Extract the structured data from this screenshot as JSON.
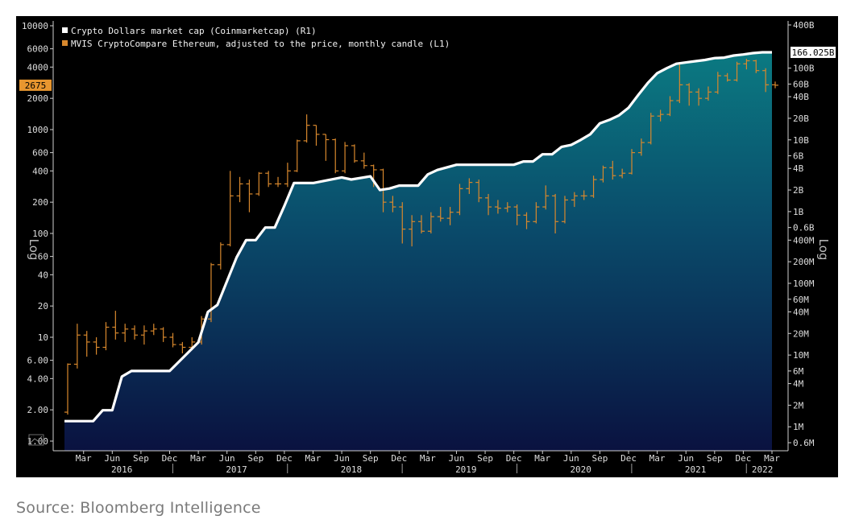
{
  "source": "Source: Bloomberg Intelligence",
  "chart_data": {
    "type": "line",
    "title": "",
    "left_axis": {
      "label": "Log",
      "scale": "log",
      "range": [
        1,
        10000
      ],
      "ticks": [
        {
          "v": 10000,
          "t": "10000"
        },
        {
          "v": 6000,
          "t": "6000"
        },
        {
          "v": 4000,
          "t": "4000"
        },
        {
          "v": 2000,
          "t": "2000"
        },
        {
          "v": 1000,
          "t": "1000"
        },
        {
          "v": 600,
          "t": "600"
        },
        {
          "v": 400,
          "t": "400"
        },
        {
          "v": 200,
          "t": "200"
        },
        {
          "v": 100,
          "t": "100"
        },
        {
          "v": 60,
          "t": "60"
        },
        {
          "v": 40,
          "t": "40"
        },
        {
          "v": 20,
          "t": "20"
        },
        {
          "v": 10,
          "t": "10"
        },
        {
          "v": 6,
          "t": "6.00"
        },
        {
          "v": 4,
          "t": "4.00"
        },
        {
          "v": 2,
          "t": "2.00"
        },
        {
          "v": 1,
          "t": "1.00"
        }
      ]
    },
    "right_axis": {
      "label": "Log",
      "scale": "log",
      "range": [
        500000,
        400000000000
      ],
      "ticks": [
        {
          "v": 400000000000,
          "t": "400B"
        },
        {
          "v": 100000000000,
          "t": "100B"
        },
        {
          "v": 60000000000,
          "t": "60B"
        },
        {
          "v": 40000000000,
          "t": "40B"
        },
        {
          "v": 20000000000,
          "t": "20B"
        },
        {
          "v": 10000000000,
          "t": "10B"
        },
        {
          "v": 6000000000,
          "t": "6B"
        },
        {
          "v": 4000000000,
          "t": "4B"
        },
        {
          "v": 2000000000,
          "t": "2B"
        },
        {
          "v": 1000000000,
          "t": "1B"
        },
        {
          "v": 600000000,
          "t": "0.6B"
        },
        {
          "v": 400000000,
          "t": "400M"
        },
        {
          "v": 200000000,
          "t": "200M"
        },
        {
          "v": 100000000,
          "t": "100M"
        },
        {
          "v": 60000000,
          "t": "60M"
        },
        {
          "v": 40000000,
          "t": "40M"
        },
        {
          "v": 20000000,
          "t": "20M"
        },
        {
          "v": 10000000,
          "t": "10M"
        },
        {
          "v": 6000000,
          "t": "6M"
        },
        {
          "v": 4000000,
          "t": "4M"
        },
        {
          "v": 2000000,
          "t": "2M"
        },
        {
          "v": 1000000,
          "t": "1M"
        },
        {
          "v": 600000,
          "t": "0.6M"
        }
      ]
    },
    "x_axis": {
      "range": [
        "2016-01",
        "2022-03"
      ],
      "month_ticks": [
        {
          "d": "2016-03",
          "t": "Mar"
        },
        {
          "d": "2016-06",
          "t": "Jun"
        },
        {
          "d": "2016-09",
          "t": "Sep"
        },
        {
          "d": "2016-12",
          "t": "Dec"
        },
        {
          "d": "2017-03",
          "t": "Mar"
        },
        {
          "d": "2017-06",
          "t": "Jun"
        },
        {
          "d": "2017-09",
          "t": "Sep"
        },
        {
          "d": "2017-12",
          "t": "Dec"
        },
        {
          "d": "2018-03",
          "t": "Mar"
        },
        {
          "d": "2018-06",
          "t": "Jun"
        },
        {
          "d": "2018-09",
          "t": "Sep"
        },
        {
          "d": "2018-12",
          "t": "Dec"
        },
        {
          "d": "2019-03",
          "t": "Mar"
        },
        {
          "d": "2019-06",
          "t": "Jun"
        },
        {
          "d": "2019-09",
          "t": "Sep"
        },
        {
          "d": "2019-12",
          "t": "Dec"
        },
        {
          "d": "2020-03",
          "t": "Mar"
        },
        {
          "d": "2020-06",
          "t": "Jun"
        },
        {
          "d": "2020-09",
          "t": "Sep"
        },
        {
          "d": "2020-12",
          "t": "Dec"
        },
        {
          "d": "2021-03",
          "t": "Mar"
        },
        {
          "d": "2021-06",
          "t": "Jun"
        },
        {
          "d": "2021-09",
          "t": "Sep"
        },
        {
          "d": "2021-12",
          "t": "Dec"
        },
        {
          "d": "2022-03",
          "t": "Mar"
        }
      ],
      "year_labels": [
        {
          "d": "2016-07",
          "t": "2016"
        },
        {
          "d": "2017-07",
          "t": "2017"
        },
        {
          "d": "2018-07",
          "t": "2018"
        },
        {
          "d": "2019-07",
          "t": "2019"
        },
        {
          "d": "2020-07",
          "t": "2020"
        },
        {
          "d": "2021-07",
          "t": "2021"
        },
        {
          "d": "2022-02",
          "t": "2022"
        }
      ]
    },
    "legend_position": "top-left",
    "series": [
      {
        "name": "Crypto Dollars market cap (Coinmarketcap) (R1)",
        "axis": "right",
        "style": "area",
        "color": "#ffffff",
        "last_value_label": "166.025B",
        "points": [
          [
            "2016-01",
            1200000
          ],
          [
            "2016-04",
            1200000
          ],
          [
            "2016-05",
            1700000
          ],
          [
            "2016-06",
            1700000
          ],
          [
            "2016-07",
            5000000
          ],
          [
            "2016-08",
            6000000
          ],
          [
            "2016-12",
            6000000
          ],
          [
            "2017-03",
            15000000
          ],
          [
            "2017-04",
            40000000
          ],
          [
            "2017-05",
            50000000
          ],
          [
            "2017-07",
            230000000
          ],
          [
            "2017-08",
            400000000
          ],
          [
            "2017-09",
            400000000
          ],
          [
            "2017-10",
            600000000
          ],
          [
            "2017-11",
            600000000
          ],
          [
            "2017-12",
            1200000000
          ],
          [
            "2018-01",
            2500000000
          ],
          [
            "2018-03",
            2500000000
          ],
          [
            "2018-06",
            3000000000
          ],
          [
            "2018-07",
            2800000000
          ],
          [
            "2018-09",
            3100000000
          ],
          [
            "2018-10",
            2000000000
          ],
          [
            "2018-11",
            2100000000
          ],
          [
            "2018-12",
            2300000000
          ],
          [
            "2019-02",
            2300000000
          ],
          [
            "2019-03",
            3300000000
          ],
          [
            "2019-04",
            3800000000
          ],
          [
            "2019-06",
            4500000000
          ],
          [
            "2019-09",
            4500000000
          ],
          [
            "2019-10",
            4500000000
          ],
          [
            "2019-12",
            4500000000
          ],
          [
            "2020-01",
            5000000000
          ],
          [
            "2020-02",
            5000000000
          ],
          [
            "2020-03",
            6300000000
          ],
          [
            "2020-04",
            6300000000
          ],
          [
            "2020-05",
            8000000000
          ],
          [
            "2020-06",
            8500000000
          ],
          [
            "2020-07",
            10000000000
          ],
          [
            "2020-08",
            12000000000
          ],
          [
            "2020-09",
            17000000000
          ],
          [
            "2020-10",
            19000000000
          ],
          [
            "2020-11",
            22000000000
          ],
          [
            "2020-12",
            28000000000
          ],
          [
            "2021-01",
            42000000000
          ],
          [
            "2021-02",
            62000000000
          ],
          [
            "2021-03",
            85000000000
          ],
          [
            "2021-04",
            100000000000
          ],
          [
            "2021-05",
            115000000000
          ],
          [
            "2021-06",
            120000000000
          ],
          [
            "2021-07",
            125000000000
          ],
          [
            "2021-08",
            130000000000
          ],
          [
            "2021-09",
            138000000000
          ],
          [
            "2021-10",
            140000000000
          ],
          [
            "2021-11",
            150000000000
          ],
          [
            "2021-12",
            155000000000
          ],
          [
            "2022-01",
            162000000000
          ],
          [
            "2022-02",
            166025000000
          ],
          [
            "2022-03",
            166025000000
          ]
        ]
      },
      {
        "name": "MVIS CryptoCompare Ethereum, adjusted to the price, monthly candle (L1)",
        "axis": "left",
        "style": "candle",
        "color": "#d8882d",
        "last_value_label": "2675",
        "candles": [
          [
            "2016-01",
            1.9,
            5.5,
            5.6,
            1.8
          ],
          [
            "2016-02",
            5.5,
            10.5,
            13.5,
            5.0
          ],
          [
            "2016-03",
            10.5,
            9.0,
            11.5,
            6.5
          ],
          [
            "2016-04",
            9.0,
            8.0,
            10.0,
            6.8
          ],
          [
            "2016-05",
            8.0,
            12.5,
            14.0,
            7.5
          ],
          [
            "2016-06",
            12.5,
            11.0,
            18.0,
            9.5
          ],
          [
            "2016-07",
            11.0,
            12.0,
            13.5,
            9.0
          ],
          [
            "2016-08",
            12.0,
            10.5,
            13.0,
            9.5
          ],
          [
            "2016-09",
            10.5,
            11.5,
            13.0,
            8.5
          ],
          [
            "2016-10",
            11.5,
            12.0,
            13.5,
            10.5
          ],
          [
            "2016-11",
            12.0,
            10.0,
            12.5,
            9.0
          ],
          [
            "2016-12",
            10.0,
            8.5,
            11.0,
            8.0
          ],
          [
            "2017-01",
            8.5,
            8.0,
            9.0,
            7.0
          ],
          [
            "2017-02",
            8.0,
            9.0,
            10.0,
            7.5
          ],
          [
            "2017-03",
            9.0,
            15.0,
            16.0,
            8.5
          ],
          [
            "2017-04",
            15.0,
            50.0,
            52.0,
            14.0
          ],
          [
            "2017-05",
            50.0,
            78.0,
            82.0,
            45.0
          ],
          [
            "2017-06",
            78.0,
            230.0,
            400.0,
            75.0
          ],
          [
            "2017-07",
            230.0,
            300.0,
            350.0,
            200.0
          ],
          [
            "2017-08",
            300.0,
            240.0,
            330.0,
            160.0
          ],
          [
            "2017-09",
            240.0,
            380.0,
            390.0,
            230.0
          ],
          [
            "2017-10",
            380.0,
            300.0,
            400.0,
            280.0
          ],
          [
            "2017-11",
            300.0,
            300.0,
            350.0,
            280.0
          ],
          [
            "2017-12",
            300.0,
            400.0,
            480.0,
            280.0
          ],
          [
            "2018-01",
            400.0,
            780.0,
            800.0,
            390.0
          ],
          [
            "2018-02",
            780.0,
            1100.0,
            1400.0,
            750.0
          ],
          [
            "2018-03",
            1100.0,
            900.0,
            1100.0,
            700.0
          ],
          [
            "2018-04",
            900.0,
            800.0,
            900.0,
            500.0
          ],
          [
            "2018-05",
            800.0,
            400.0,
            820.0,
            380.0
          ],
          [
            "2018-06",
            400.0,
            700.0,
            760.0,
            380.0
          ],
          [
            "2018-07",
            700.0,
            500.0,
            720.0,
            480.0
          ],
          [
            "2018-08",
            500.0,
            450.0,
            600.0,
            420.0
          ],
          [
            "2018-09",
            450.0,
            410.0,
            460.0,
            280.0
          ],
          [
            "2018-10",
            410.0,
            200.0,
            420.0,
            160.0
          ],
          [
            "2018-11",
            200.0,
            180.0,
            230.0,
            160.0
          ],
          [
            "2018-12",
            180.0,
            110.0,
            200.0,
            80.0
          ],
          [
            "2019-01",
            110.0,
            130.0,
            150.0,
            75.0
          ],
          [
            "2019-02",
            130.0,
            105.0,
            150.0,
            100.0
          ],
          [
            "2019-03",
            105.0,
            145.0,
            160.0,
            100.0
          ],
          [
            "2019-04",
            145.0,
            140.0,
            180.0,
            130.0
          ],
          [
            "2019-05",
            140.0,
            160.0,
            180.0,
            120.0
          ],
          [
            "2019-06",
            160.0,
            270.0,
            300.0,
            150.0
          ],
          [
            "2019-07",
            270.0,
            310.0,
            340.0,
            240.0
          ],
          [
            "2019-08",
            310.0,
            220.0,
            330.0,
            200.0
          ],
          [
            "2019-09",
            220.0,
            180.0,
            240.0,
            150.0
          ],
          [
            "2019-10",
            180.0,
            175.0,
            210.0,
            155.0
          ],
          [
            "2019-11",
            175.0,
            180.0,
            200.0,
            160.0
          ],
          [
            "2019-12",
            180.0,
            150.0,
            190.0,
            120.0
          ],
          [
            "2020-01",
            150.0,
            130.0,
            160.0,
            110.0
          ],
          [
            "2020-02",
            130.0,
            180.0,
            200.0,
            125.0
          ],
          [
            "2020-03",
            180.0,
            230.0,
            290.0,
            170.0
          ],
          [
            "2020-04",
            230.0,
            130.0,
            240.0,
            100.0
          ],
          [
            "2020-05",
            130.0,
            210.0,
            230.0,
            125.0
          ],
          [
            "2020-06",
            210.0,
            230.0,
            250.0,
            180.0
          ],
          [
            "2020-07",
            230.0,
            230.0,
            260.0,
            210.0
          ],
          [
            "2020-08",
            230.0,
            330.0,
            360.0,
            220.0
          ],
          [
            "2020-09",
            330.0,
            430.0,
            450.0,
            310.0
          ],
          [
            "2020-10",
            430.0,
            360.0,
            500.0,
            330.0
          ],
          [
            "2020-11",
            360.0,
            380.0,
            420.0,
            340.0
          ],
          [
            "2020-12",
            380.0,
            600.0,
            650.0,
            370.0
          ],
          [
            "2021-01",
            600.0,
            750.0,
            820.0,
            560.0
          ],
          [
            "2021-02",
            750.0,
            1350.0,
            1450.0,
            720.0
          ],
          [
            "2021-03",
            1350.0,
            1400.0,
            1550.0,
            1200.0
          ],
          [
            "2021-04",
            1400.0,
            1900.0,
            2100.0,
            1350.0
          ],
          [
            "2021-05",
            1900.0,
            2700.0,
            4300.0,
            1800.0
          ],
          [
            "2021-06",
            2700.0,
            2300.0,
            2800.0,
            1700.0
          ],
          [
            "2021-07",
            2300.0,
            2000.0,
            2500.0,
            1700.0
          ],
          [
            "2021-08",
            2000.0,
            2300.0,
            2600.0,
            1900.0
          ],
          [
            "2021-09",
            2300.0,
            3300.0,
            3600.0,
            2200.0
          ],
          [
            "2021-10",
            3300.0,
            3000.0,
            3500.0,
            2900.0
          ],
          [
            "2021-11",
            3000.0,
            4300.0,
            4500.0,
            2900.0
          ],
          [
            "2021-12",
            4300.0,
            4600.0,
            4800.0,
            3800.0
          ],
          [
            "2022-01",
            4600.0,
            3700.0,
            4700.0,
            3500.0
          ],
          [
            "2022-02",
            3700.0,
            2700.0,
            3900.0,
            2300.0
          ],
          [
            "2022-03",
            2700.0,
            2675.0,
            2900.0,
            2500.0
          ]
        ]
      }
    ]
  }
}
